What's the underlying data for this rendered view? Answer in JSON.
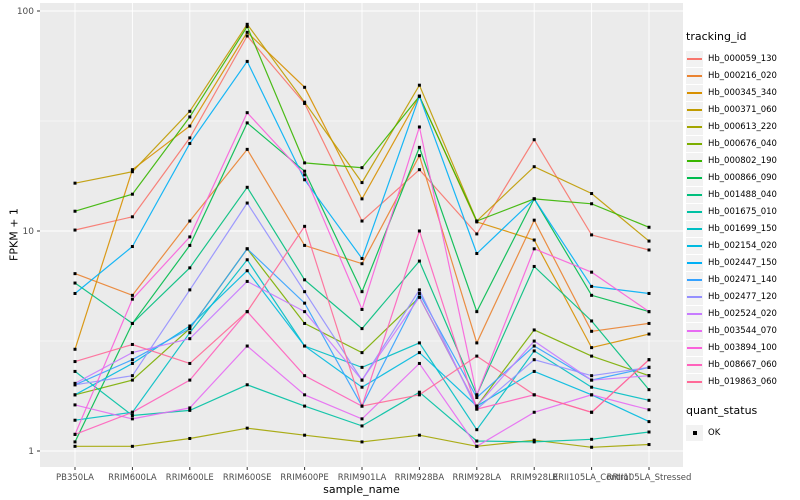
{
  "figure": {
    "x_axis": {
      "title": "sample_name"
    },
    "y_axis": {
      "title": "FPKM + 1",
      "tick_labels": [
        "1",
        "10",
        "100"
      ],
      "tick_values": [
        1,
        10,
        100
      ],
      "minor_values": [
        3.1623,
        31.6228
      ]
    },
    "legend": {
      "tracking_title": "tracking_id",
      "quant_title": "quant_status",
      "quant_items": [
        {
          "label": "OK",
          "marker": "black-square"
        }
      ]
    },
    "panel_background": "#EBEBEB",
    "gridline_color": "#FFFFFF",
    "tick_label_color": "#4D4D4D"
  },
  "chart_data": {
    "type": "line",
    "title": "",
    "xlabel": "sample_name",
    "ylabel": "FPKM + 1",
    "y_scale": "log10",
    "ylim": [
      1,
      100
    ],
    "grid": "on",
    "legend_position": "right",
    "marker": {
      "shape": "square",
      "color": "#000000",
      "meaning": "quant_status OK"
    },
    "categories": [
      "PB350LA",
      "RRIM600LA",
      "RRIM600LE",
      "RRIM600SE",
      "RRIM600PE",
      "RRIM901LA",
      "RRIM928BA",
      "RRIM928LA",
      "RRIM928LE",
      "RRII105LA_Control",
      "RRII105LA_Stressed"
    ],
    "series": [
      {
        "name": "Hb_000059_130",
        "color": "#F8766D",
        "values": [
          10.1,
          11.6,
          26.5,
          77,
          38,
          11.1,
          19,
          9.7,
          26,
          9.6,
          8.2
        ]
      },
      {
        "name": "Hb_000216_020",
        "color": "#EA8331",
        "values": [
          6.4,
          5.1,
          11.1,
          23.5,
          8.6,
          7.1,
          22,
          3.1,
          11.2,
          3.5,
          3.8
        ]
      },
      {
        "name": "Hb_000345_340",
        "color": "#D89000",
        "values": [
          2.9,
          19,
          30,
          80,
          45,
          14,
          41,
          11,
          9.1,
          2.95,
          3.4
        ]
      },
      {
        "name": "Hb_000371_060",
        "color": "#C09B00",
        "values": [
          16.5,
          18.6,
          35,
          87,
          38.5,
          16.6,
          46,
          11.1,
          19.6,
          14.8,
          9.0
        ]
      },
      {
        "name": "Hb_000613_220",
        "color": "#A3A500",
        "values": [
          1.05,
          1.05,
          1.14,
          1.27,
          1.18,
          1.1,
          1.18,
          1.05,
          1.12,
          1.04,
          1.07
        ]
      },
      {
        "name": "Hb_000676_040",
        "color": "#7CAE00",
        "values": [
          1.8,
          2.1,
          3.6,
          8.3,
          3.8,
          2.8,
          5.0,
          1.6,
          3.55,
          2.7,
          2.2
        ]
      },
      {
        "name": "Hb_000802_190",
        "color": "#39B600",
        "values": [
          12.3,
          14.7,
          33,
          85,
          20.4,
          19.4,
          41,
          11.1,
          14,
          13.3,
          10.4
        ]
      },
      {
        "name": "Hb_000866_090",
        "color": "#00BB4E",
        "values": [
          1.1,
          3.8,
          8.6,
          31,
          18.7,
          5.3,
          24,
          4.3,
          14,
          5.1,
          4.3
        ]
      },
      {
        "name": "Hb_001488_040",
        "color": "#00BF7D",
        "values": [
          5.8,
          3.8,
          6.8,
          15.8,
          6.0,
          3.6,
          7.3,
          1.8,
          6.9,
          3.9,
          1.9
        ]
      },
      {
        "name": "Hb_001675_010",
        "color": "#00C1A3",
        "values": [
          2.3,
          1.45,
          1.53,
          2.0,
          1.6,
          1.3,
          1.85,
          1.11,
          1.1,
          1.13,
          1.22
        ]
      },
      {
        "name": "Hb_001699_150",
        "color": "#00BFC4",
        "values": [
          1.38,
          1.5,
          3.45,
          7.4,
          3.0,
          2.4,
          3.1,
          1.25,
          2.85,
          1.95,
          1.7
        ]
      },
      {
        "name": "Hb_002154_020",
        "color": "#00BAE0",
        "values": [
          1.8,
          2.5,
          3.7,
          6.6,
          3.0,
          1.95,
          2.8,
          1.6,
          2.3,
          1.8,
          1.36
        ]
      },
      {
        "name": "Hb_002447_150",
        "color": "#00B0F6",
        "values": [
          5.2,
          8.5,
          25,
          59,
          17.1,
          7.5,
          41,
          7.9,
          14,
          5.6,
          5.2
        ]
      },
      {
        "name": "Hb_002471_140",
        "color": "#35A2FF",
        "values": [
          2.0,
          2.6,
          3.6,
          8.3,
          4.7,
          1.6,
          5.2,
          1.75,
          3.0,
          2.1,
          2.4
        ]
      },
      {
        "name": "Hb_002477_120",
        "color": "#9590FF",
        "values": [
          2.0,
          2.2,
          5.4,
          13.4,
          5.3,
          2.1,
          5.4,
          1.55,
          2.6,
          2.2,
          2.4
        ]
      },
      {
        "name": "Hb_002524_020",
        "color": "#C77CFF",
        "values": [
          2.03,
          2.8,
          3.24,
          5.9,
          4.3,
          2.1,
          5.0,
          1.6,
          3.16,
          2.1,
          2.2
        ]
      },
      {
        "name": "Hb_003544_070",
        "color": "#E76BF3",
        "values": [
          1.62,
          1.4,
          1.57,
          3.0,
          1.8,
          1.4,
          2.5,
          1.05,
          1.5,
          1.8,
          1.54
        ]
      },
      {
        "name": "Hb_003894_100",
        "color": "#FA62DB",
        "values": [
          1.19,
          4.9,
          9.4,
          34.5,
          18,
          4.4,
          29.7,
          1.8,
          8.3,
          6.5,
          4.3
        ]
      },
      {
        "name": "Hb_008667_060",
        "color": "#FF62BC",
        "values": [
          1.19,
          1.5,
          2.1,
          4.3,
          2.2,
          1.6,
          10,
          1.55,
          1.8,
          1.5,
          2.6
        ]
      },
      {
        "name": "Hb_019863_060",
        "color": "#FF6A98",
        "values": [
          2.55,
          3.05,
          2.5,
          4.3,
          10.5,
          1.6,
          1.8,
          2.7,
          1.8,
          1.5,
          2.6
        ]
      }
    ]
  }
}
